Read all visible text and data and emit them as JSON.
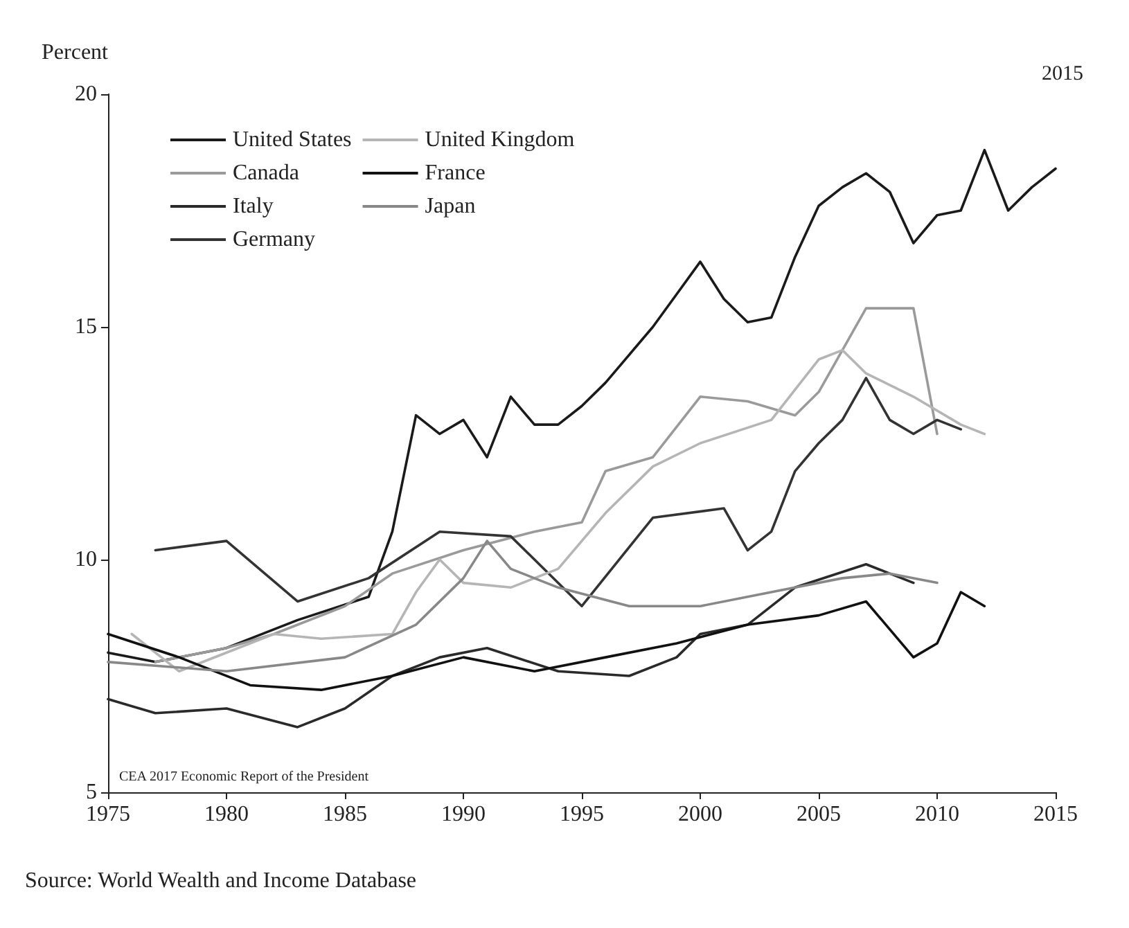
{
  "chart_data": {
    "type": "line",
    "ylabel": "Percent",
    "xlim": [
      1975,
      2015
    ],
    "xticks": [
      1975,
      1980,
      1985,
      1990,
      1995,
      2000,
      2005,
      2010,
      2015
    ],
    "ylim": [
      5,
      20
    ],
    "yticks": [
      5,
      10,
      15,
      20
    ],
    "grid": false,
    "legend": "top left",
    "marker": "none",
    "line_style": "solid",
    "annotations": [
      "2015",
      "CEA 2017 Economic Report of the President",
      "Source: World Wealth and Income Database"
    ],
    "series": [
      {
        "name": "United States",
        "color": "#1a1a1a",
        "x": [
          1975,
          1977,
          1980,
          1983,
          1986,
          1987,
          1988,
          1989,
          1990,
          1991,
          1992,
          1993,
          1994,
          1995,
          1996,
          1997,
          1998,
          1999,
          2000,
          2001,
          2002,
          2003,
          2004,
          2005,
          2006,
          2007,
          2008,
          2009,
          2010,
          2011,
          2012,
          2013,
          2014,
          2015
        ],
        "values": [
          8.0,
          7.8,
          8.1,
          8.7,
          9.2,
          10.6,
          13.1,
          12.7,
          13.0,
          12.2,
          13.5,
          12.9,
          12.9,
          13.3,
          13.8,
          14.4,
          15.0,
          15.7,
          16.4,
          15.6,
          15.1,
          15.2,
          16.5,
          17.6,
          18.0,
          18.3,
          17.9,
          16.8,
          17.4,
          17.5,
          18.8,
          17.5,
          18.0,
          18.4
        ]
      },
      {
        "name": "Canada",
        "color": "#9a9a9a",
        "x": [
          1977,
          1980,
          1982,
          1985,
          1987,
          1990,
          1993,
          1995,
          1996,
          1998,
          2000,
          2002,
          2004,
          2005,
          2006,
          2007,
          2009,
          2010
        ],
        "values": [
          7.8,
          8.1,
          8.4,
          9.0,
          9.7,
          10.2,
          10.6,
          10.8,
          11.9,
          12.2,
          13.5,
          13.4,
          13.1,
          13.6,
          14.5,
          15.4,
          15.4,
          12.7
        ]
      },
      {
        "name": "Italy",
        "color": "#2a2a2a",
        "x": [
          1975,
          1977,
          1980,
          1983,
          1985,
          1987,
          1989,
          1991,
          1994,
          1997,
          1999,
          2000,
          2002,
          2004,
          2007,
          2009
        ],
        "values": [
          7.0,
          6.7,
          6.8,
          6.4,
          6.8,
          7.5,
          7.9,
          8.1,
          7.6,
          7.5,
          7.9,
          8.4,
          8.6,
          9.4,
          9.9,
          9.5
        ]
      },
      {
        "name": "Germany",
        "color": "#333333",
        "x": [
          1977,
          1980,
          1983,
          1986,
          1989,
          1992,
          1995,
          1998,
          2001,
          2002,
          2003,
          2004,
          2005,
          2006,
          2007,
          2008,
          2009,
          2010,
          2011
        ],
        "values": [
          10.2,
          10.4,
          9.1,
          9.6,
          10.6,
          10.5,
          9.0,
          10.9,
          11.1,
          10.2,
          10.6,
          11.9,
          12.5,
          13.0,
          13.9,
          13.0,
          12.7,
          13.0,
          12.8
        ]
      },
      {
        "name": "United Kingdom",
        "color": "#b5b5b5",
        "x": [
          1976,
          1978,
          1982,
          1984,
          1987,
          1988,
          1989,
          1990,
          1992,
          1994,
          1996,
          1998,
          2000,
          2003,
          2005,
          2006,
          2007,
          2009,
          2011,
          2012
        ],
        "values": [
          8.4,
          7.6,
          8.4,
          8.3,
          8.4,
          9.3,
          10.0,
          9.5,
          9.4,
          9.8,
          11.0,
          12.0,
          12.5,
          13.0,
          14.3,
          14.5,
          14.0,
          13.5,
          12.9,
          12.7
        ]
      },
      {
        "name": "France",
        "color": "#111111",
        "x": [
          1975,
          1978,
          1981,
          1984,
          1987,
          1990,
          1993,
          1996,
          1999,
          2002,
          2005,
          2007,
          2009,
          2010,
          2011,
          2012
        ],
        "values": [
          8.4,
          7.9,
          7.3,
          7.2,
          7.5,
          7.9,
          7.6,
          7.9,
          8.2,
          8.6,
          8.8,
          9.1,
          7.9,
          8.2,
          9.3,
          9.0
        ]
      },
      {
        "name": "Japan",
        "color": "#888888",
        "x": [
          1975,
          1980,
          1985,
          1988,
          1990,
          1991,
          1992,
          1994,
          1997,
          2000,
          2003,
          2006,
          2008,
          2010
        ],
        "values": [
          7.8,
          7.6,
          7.9,
          8.6,
          9.6,
          10.4,
          9.8,
          9.4,
          9.0,
          9.0,
          9.3,
          9.6,
          9.7,
          9.5
        ]
      }
    ]
  }
}
